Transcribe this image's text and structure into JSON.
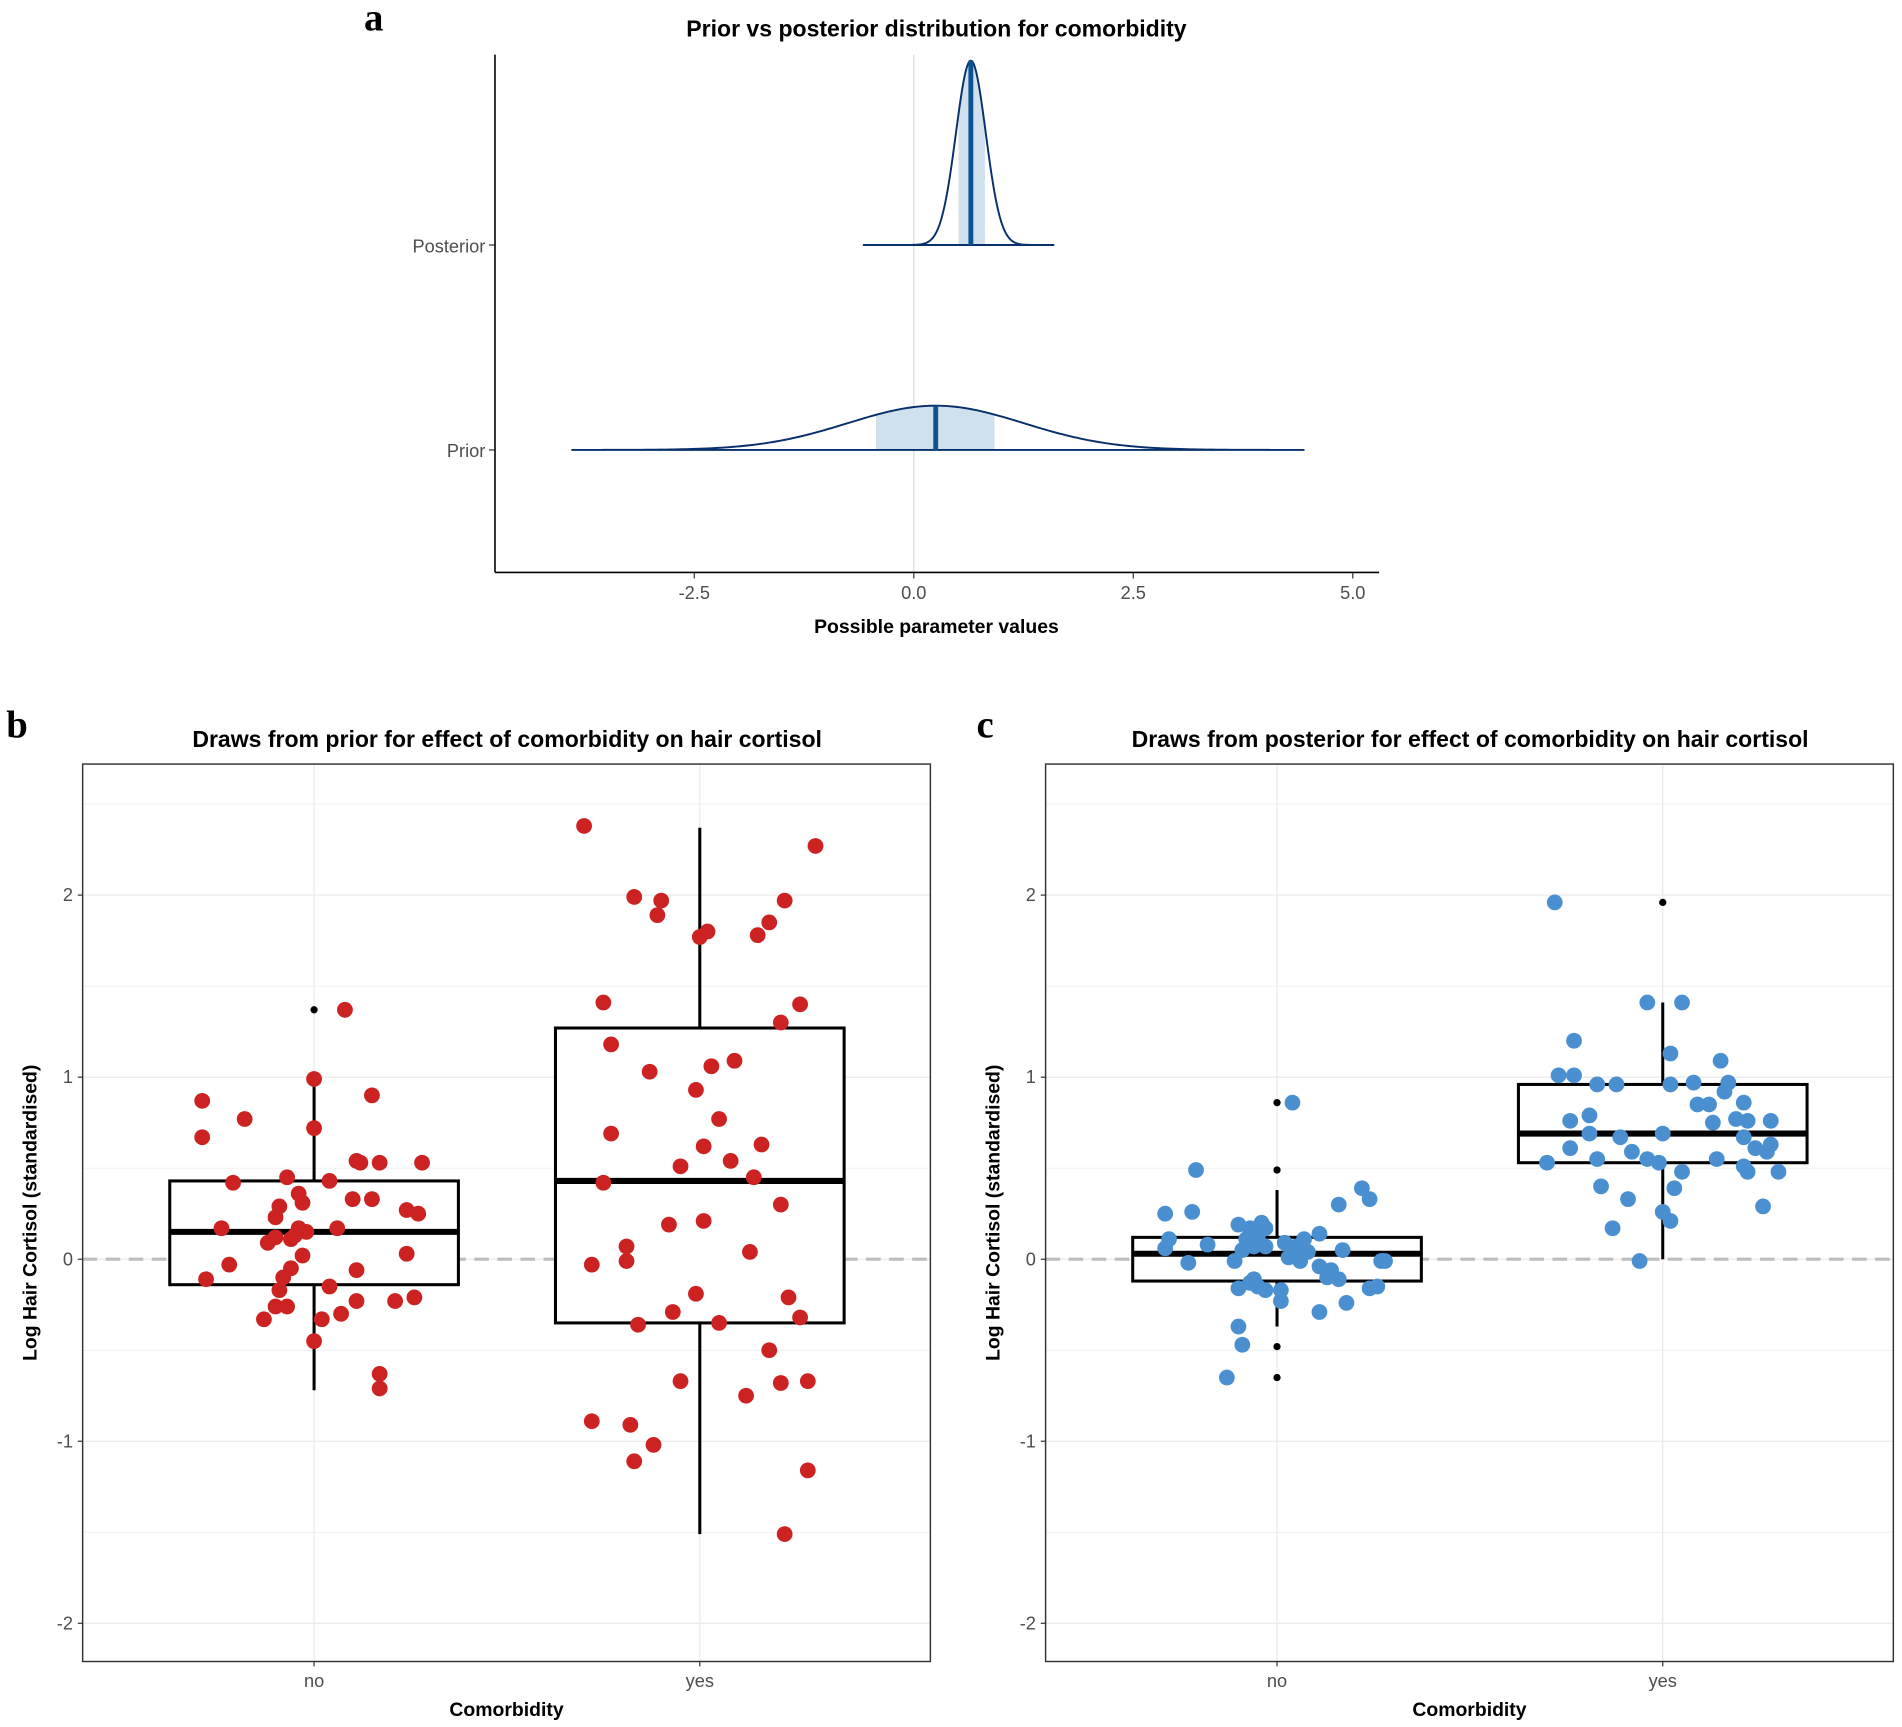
{
  "chart_data": [
    {
      "panel": "a",
      "type": "area",
      "title": "Prior vs posterior distribution for comorbidity",
      "xlabel": "Possible parameter values",
      "xlim": [
        -4.77,
        5.3
      ],
      "xticks": [
        "-2.5",
        "0.0",
        "2.5",
        "5.0"
      ],
      "xtick_values": [
        -2.5,
        0,
        2.5,
        5
      ],
      "categories": [
        "Posterior",
        "Prior"
      ],
      "vline": 0,
      "series": [
        {
          "name": "Posterior",
          "mean": 0.65,
          "sd": 0.17,
          "median": 0.65,
          "interval": [
            0.51,
            0.81
          ],
          "range": [
            -0.58,
            1.6
          ],
          "relative_height": 1.0
        },
        {
          "name": "Prior",
          "mean": 0.25,
          "sd": 1.0,
          "median": 0.25,
          "interval": [
            -0.43,
            0.92
          ],
          "range": [
            -3.9,
            4.45
          ],
          "relative_height": 0.24
        }
      ],
      "colors": {
        "line": "#08306b",
        "median": "#0b5394",
        "fill": "#d0e0ec"
      }
    },
    {
      "panel": "b",
      "type": "scatter",
      "title": "Draws from prior for effect of comorbidity on hair cortisol",
      "xlabel": "Comorbidity",
      "ylabel": "Log Hair Cortisol (standardised)",
      "categories": [
        "no",
        "yes"
      ],
      "ylim": [
        -2.21,
        2.72
      ],
      "yticks": [
        "-2",
        "-1",
        "0",
        "1",
        "2"
      ],
      "ytick_values": [
        -2,
        -1,
        0,
        1,
        2
      ],
      "point_color": "#cc2222",
      "boxes": [
        {
          "category": "no",
          "q1": -0.14,
          "median": 0.15,
          "q3": 0.43,
          "whisker_low": -0.72,
          "whisker_high": 0.98,
          "outliers": [
            1.37
          ]
        },
        {
          "category": "yes",
          "q1": -0.35,
          "median": 0.43,
          "q3": 1.27,
          "whisker_low": -1.51,
          "whisker_high": 2.37,
          "outliers": []
        }
      ],
      "points": {
        "no": [
          [
            -0.29,
            0.87
          ],
          [
            -0.29,
            0.67
          ],
          [
            -0.18,
            0.77
          ],
          [
            -0.21,
            0.42
          ],
          [
            -0.24,
            0.17
          ],
          [
            -0.28,
            -0.11
          ],
          [
            -0.22,
            -0.03
          ],
          [
            -0.09,
            0.29
          ],
          [
            -0.1,
            0.23
          ],
          [
            -0.07,
            0.45
          ],
          [
            -0.04,
            0.36
          ],
          [
            -0.03,
            0.31
          ],
          [
            -0.04,
            0.17
          ],
          [
            -0.1,
            0.12
          ],
          [
            -0.12,
            0.09
          ],
          [
            -0.06,
            0.11
          ],
          [
            -0.05,
            0.13
          ],
          [
            -0.02,
            0.15
          ],
          [
            -0.03,
            0.02
          ],
          [
            -0.06,
            -0.05
          ],
          [
            -0.08,
            -0.1
          ],
          [
            -0.09,
            -0.17
          ],
          [
            -0.07,
            -0.26
          ],
          [
            -0.13,
            -0.33
          ],
          [
            -0.1,
            -0.26
          ],
          [
            0.02,
            -0.33
          ],
          [
            0,
            -0.45
          ],
          [
            0.07,
            -0.3
          ],
          [
            0.11,
            -0.23
          ],
          [
            0,
            0.99
          ],
          [
            0,
            0.72
          ],
          [
            0.08,
            1.37
          ],
          [
            0.15,
            0.9
          ],
          [
            0.11,
            0.54
          ],
          [
            0.12,
            0.53
          ],
          [
            0.17,
            0.53
          ],
          [
            0.04,
            0.43
          ],
          [
            0.1,
            0.33
          ],
          [
            0.15,
            0.33
          ],
          [
            0.06,
            0.17
          ],
          [
            0.24,
            0.27
          ],
          [
            0.27,
            0.25
          ],
          [
            0.28,
            0.53
          ],
          [
            0.11,
            -0.06
          ],
          [
            0.04,
            -0.15
          ],
          [
            0.21,
            -0.23
          ],
          [
            0.26,
            -0.21
          ],
          [
            0.24,
            0.03
          ],
          [
            0.17,
            -0.63
          ],
          [
            0.17,
            -0.71
          ]
        ],
        "yes": [
          [
            -0.3,
            2.38
          ],
          [
            -0.17,
            1.99
          ],
          [
            -0.1,
            1.97
          ],
          [
            -0.11,
            1.89
          ],
          [
            0,
            1.77
          ],
          [
            0.02,
            1.8
          ],
          [
            0.15,
            1.78
          ],
          [
            0.18,
            1.85
          ],
          [
            0.22,
            1.97
          ],
          [
            0.3,
            2.27
          ],
          [
            -0.25,
            1.41
          ],
          [
            -0.23,
            1.18
          ],
          [
            -0.13,
            1.03
          ],
          [
            0.03,
            1.06
          ],
          [
            0.09,
            1.09
          ],
          [
            0.26,
            1.4
          ],
          [
            0.21,
            1.3
          ],
          [
            -0.01,
            0.93
          ],
          [
            0.05,
            0.77
          ],
          [
            -0.23,
            0.69
          ],
          [
            0.01,
            0.62
          ],
          [
            0.16,
            0.63
          ],
          [
            0.08,
            0.54
          ],
          [
            -0.05,
            0.51
          ],
          [
            0.14,
            0.45
          ],
          [
            -0.25,
            0.42
          ],
          [
            0.21,
            0.3
          ],
          [
            -0.08,
            0.19
          ],
          [
            0.01,
            0.21
          ],
          [
            -0.19,
            0.07
          ],
          [
            0.13,
            0.04
          ],
          [
            -0.19,
            -0.01
          ],
          [
            -0.28,
            -0.03
          ],
          [
            0.23,
            -0.21
          ],
          [
            -0.01,
            -0.19
          ],
          [
            -0.07,
            -0.29
          ],
          [
            -0.16,
            -0.36
          ],
          [
            0.05,
            -0.35
          ],
          [
            0.26,
            -0.32
          ],
          [
            0.18,
            -0.5
          ],
          [
            -0.05,
            -0.67
          ],
          [
            0.21,
            -0.68
          ],
          [
            0.28,
            -0.67
          ],
          [
            0.12,
            -0.75
          ],
          [
            -0.28,
            -0.89
          ],
          [
            -0.18,
            -0.91
          ],
          [
            -0.12,
            -1.02
          ],
          [
            -0.17,
            -1.11
          ],
          [
            0.28,
            -1.16
          ],
          [
            0.22,
            -1.51
          ]
        ]
      }
    },
    {
      "panel": "c",
      "type": "scatter",
      "title": "Draws from posterior for effect of comorbidity on hair cortisol",
      "xlabel": "Comorbidity",
      "ylabel": "Log Hair Cortisol (standardised)",
      "categories": [
        "no",
        "yes"
      ],
      "ylim": [
        -2.21,
        2.72
      ],
      "yticks": [
        "-2",
        "-1",
        "0",
        "1",
        "2"
      ],
      "ytick_values": [
        -2,
        -1,
        0,
        1,
        2
      ],
      "point_color": "#4a90d0",
      "boxes": [
        {
          "category": "no",
          "q1": -0.12,
          "median": 0.03,
          "q3": 0.12,
          "whisker_low": -0.37,
          "whisker_high": 0.38,
          "outliers": [
            0.86,
            0.49,
            -0.48,
            -0.65
          ]
        },
        {
          "category": "yes",
          "q1": 0.53,
          "median": 0.69,
          "q3": 0.96,
          "whisker_low": 0.0,
          "whisker_high": 1.41,
          "outliers": [
            1.96
          ]
        }
      ],
      "points": {
        "no": [
          [
            -0.21,
            0.49
          ],
          [
            -0.29,
            0.25
          ],
          [
            -0.22,
            0.26
          ],
          [
            -0.18,
            0.08
          ],
          [
            -0.28,
            0.11
          ],
          [
            -0.29,
            0.06
          ],
          [
            -0.23,
            -0.02
          ],
          [
            -0.1,
            0.19
          ],
          [
            -0.07,
            0.17
          ],
          [
            -0.04,
            0.2
          ],
          [
            -0.03,
            0.17
          ],
          [
            -0.08,
            0.11
          ],
          [
            -0.09,
            0.05
          ],
          [
            -0.06,
            0.07
          ],
          [
            -0.05,
            0.12
          ],
          [
            -0.03,
            0.07
          ],
          [
            -0.11,
            -0.01
          ],
          [
            -0.1,
            -0.16
          ],
          [
            -0.07,
            -0.13
          ],
          [
            -0.05,
            -0.15
          ],
          [
            -0.03,
            -0.17
          ],
          [
            -0.06,
            -0.11
          ],
          [
            0.01,
            -0.17
          ],
          [
            0.01,
            -0.23
          ],
          [
            -0.1,
            -0.37
          ],
          [
            -0.09,
            -0.47
          ],
          [
            -0.13,
            -0.65
          ],
          [
            0.04,
            0.86
          ],
          [
            0.16,
            0.3
          ],
          [
            0.22,
            0.39
          ],
          [
            0.24,
            0.33
          ],
          [
            0.02,
            0.09
          ],
          [
            0.05,
            0.07
          ],
          [
            0.07,
            0.11
          ],
          [
            0.11,
            0.14
          ],
          [
            0.08,
            0.04
          ],
          [
            0.03,
            0.01
          ],
          [
            0.06,
            -0.01
          ],
          [
            0.11,
            -0.04
          ],
          [
            0.14,
            -0.06
          ],
          [
            0.16,
            -0.11
          ],
          [
            0.17,
            0.05
          ],
          [
            0.13,
            -0.1
          ],
          [
            0.11,
            -0.29
          ],
          [
            0.18,
            -0.24
          ],
          [
            0.24,
            -0.16
          ],
          [
            0.26,
            -0.15
          ],
          [
            0.27,
            -0.01
          ],
          [
            0.28,
            -0.01
          ]
        ],
        "yes": [
          [
            -0.28,
            1.96
          ],
          [
            -0.27,
            1.01
          ],
          [
            -0.23,
            1.01
          ],
          [
            -0.23,
            1.2
          ],
          [
            -0.17,
            0.96
          ],
          [
            -0.12,
            0.96
          ],
          [
            -0.04,
            1.41
          ],
          [
            0.05,
            1.41
          ],
          [
            0.02,
            1.13
          ],
          [
            0.02,
            0.96
          ],
          [
            0.08,
            0.97
          ],
          [
            0.15,
            1.09
          ],
          [
            0.17,
            0.97
          ],
          [
            0.16,
            0.92
          ],
          [
            0.09,
            0.85
          ],
          [
            0.12,
            0.85
          ],
          [
            0.21,
            0.86
          ],
          [
            -0.24,
            0.76
          ],
          [
            -0.19,
            0.79
          ],
          [
            -0.19,
            0.69
          ],
          [
            -0.11,
            0.67
          ],
          [
            0,
            0.69
          ],
          [
            0.13,
            0.75
          ],
          [
            0.19,
            0.77
          ],
          [
            0.22,
            0.76
          ],
          [
            0.28,
            0.76
          ],
          [
            0.21,
            0.67
          ],
          [
            0.24,
            0.61
          ],
          [
            0.27,
            0.59
          ],
          [
            0.28,
            0.63
          ],
          [
            -0.24,
            0.61
          ],
          [
            -0.3,
            0.53
          ],
          [
            -0.17,
            0.55
          ],
          [
            -0.08,
            0.59
          ],
          [
            -0.04,
            0.55
          ],
          [
            -0.01,
            0.53
          ],
          [
            0.14,
            0.55
          ],
          [
            0.21,
            0.51
          ],
          [
            0.22,
            0.48
          ],
          [
            0.3,
            0.48
          ],
          [
            0.05,
            0.48
          ],
          [
            -0.16,
            0.4
          ],
          [
            0.03,
            0.39
          ],
          [
            -0.09,
            0.33
          ],
          [
            0.26,
            0.29
          ],
          [
            0,
            0.26
          ],
          [
            0.02,
            0.21
          ],
          [
            -0.13,
            0.17
          ],
          [
            -0.06,
            -0.01
          ]
        ]
      }
    }
  ],
  "labels": {
    "a": "a",
    "b": "b",
    "c": "c"
  }
}
